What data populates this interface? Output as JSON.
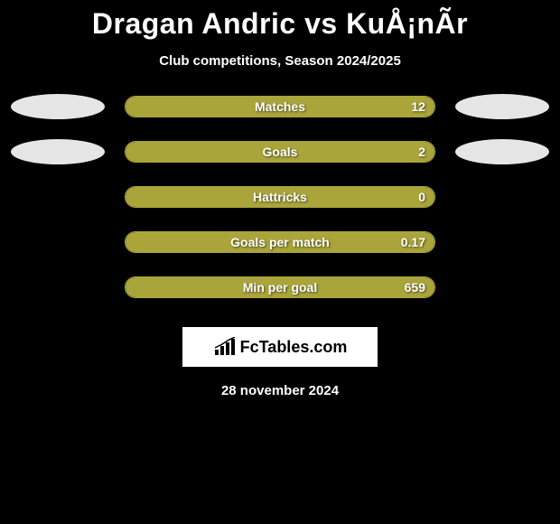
{
  "title": "Dragan Andric vs KuÅ¡nÃ­r",
  "subtitle": "Club competitions, Season 2024/2025",
  "date": "28 november 2024",
  "branding": {
    "text": "FcTables.com"
  },
  "colors": {
    "background": "#000000",
    "bar_fill": "#a9a53b",
    "bar_border": "#a9a53b",
    "ellipse": "#e6e6e6",
    "text": "#ffffff",
    "brand_bg": "#ffffff",
    "brand_text": "#000000"
  },
  "stats": [
    {
      "label": "Matches",
      "value_right": "12",
      "fill_percent_right": 100,
      "left_ellipse": true,
      "right_ellipse": true
    },
    {
      "label": "Goals",
      "value_right": "2",
      "fill_percent_right": 100,
      "left_ellipse": true,
      "right_ellipse": true
    },
    {
      "label": "Hattricks",
      "value_right": "0",
      "fill_percent_right": 100,
      "left_ellipse": false,
      "right_ellipse": false
    },
    {
      "label": "Goals per match",
      "value_right": "0.17",
      "fill_percent_right": 100,
      "left_ellipse": false,
      "right_ellipse": false
    },
    {
      "label": "Min per goal",
      "value_right": "659",
      "fill_percent_right": 100,
      "left_ellipse": false,
      "right_ellipse": false
    }
  ]
}
